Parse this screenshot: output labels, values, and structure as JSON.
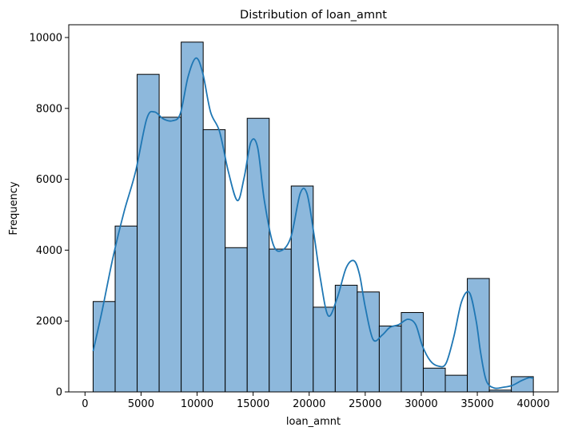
{
  "chart_data": {
    "type": "bar",
    "title": "Distribution of loan_amnt",
    "xlabel": "loan_amnt",
    "ylabel": "Frequency",
    "xlim": [
      -1450,
      42200
    ],
    "ylim": [
      0,
      10360
    ],
    "xticks": [
      0,
      5000,
      10000,
      15000,
      20000,
      25000,
      30000,
      35000,
      40000
    ],
    "yticks": [
      0,
      2000,
      4000,
      6000,
      8000,
      10000
    ],
    "grid": false,
    "bar_color": "#8db8dc",
    "bar_edge": "#000000",
    "kde_color": "#1f77b4",
    "bins": [
      {
        "x0": 725,
        "x1": 2689,
        "count": 2550
      },
      {
        "x0": 2689,
        "x1": 4653,
        "count": 4680
      },
      {
        "x0": 4653,
        "x1": 6616,
        "count": 8960
      },
      {
        "x0": 6616,
        "x1": 8580,
        "count": 7750
      },
      {
        "x0": 8580,
        "x1": 10544,
        "count": 9870
      },
      {
        "x0": 10544,
        "x1": 12507,
        "count": 7400
      },
      {
        "x0": 12507,
        "x1": 14471,
        "count": 4070
      },
      {
        "x0": 14471,
        "x1": 16435,
        "count": 7720
      },
      {
        "x0": 16435,
        "x1": 18398,
        "count": 4030
      },
      {
        "x0": 18398,
        "x1": 20362,
        "count": 5810
      },
      {
        "x0": 20362,
        "x1": 22326,
        "count": 2390
      },
      {
        "x0": 22326,
        "x1": 24289,
        "count": 3010
      },
      {
        "x0": 24289,
        "x1": 26253,
        "count": 2820
      },
      {
        "x0": 26253,
        "x1": 28217,
        "count": 1860
      },
      {
        "x0": 28217,
        "x1": 30180,
        "count": 2240
      },
      {
        "x0": 30180,
        "x1": 32144,
        "count": 670
      },
      {
        "x0": 32144,
        "x1": 34108,
        "count": 470
      },
      {
        "x0": 34108,
        "x1": 36071,
        "count": 3200
      },
      {
        "x0": 36071,
        "x1": 38035,
        "count": 50
      },
      {
        "x0": 38035,
        "x1": 39999,
        "count": 430
      }
    ],
    "kde": {
      "x": [
        725,
        1500,
        2500,
        3500,
        4500,
        5500,
        6200,
        7000,
        7800,
        8500,
        9200,
        9900,
        10500,
        11200,
        12000,
        12800,
        13600,
        14200,
        14800,
        15400,
        16000,
        16800,
        17600,
        18400,
        19200,
        19800,
        20400,
        21000,
        21700,
        22500,
        23300,
        24000,
        24500,
        25000,
        25700,
        26500,
        27200,
        28000,
        28800,
        29500,
        30100,
        30800,
        31500,
        32200,
        32900,
        33600,
        34300,
        34900,
        35300,
        35800,
        36500,
        37300,
        38100,
        38900,
        39600,
        39999
      ],
      "y": [
        1150,
        2250,
        3800,
        5100,
        6200,
        7700,
        7900,
        7700,
        7650,
        7850,
        8900,
        9420,
        9000,
        7900,
        7350,
        6200,
        5400,
        6050,
        7050,
        6900,
        5400,
        4150,
        4000,
        4400,
        5600,
        5600,
        4500,
        3200,
        2150,
        2650,
        3500,
        3700,
        3300,
        2400,
        1480,
        1600,
        1820,
        1900,
        2050,
        1900,
        1300,
        880,
        730,
        800,
        1550,
        2550,
        2800,
        2000,
        1100,
        320,
        110,
        130,
        180,
        310,
        400,
        380
      ]
    }
  }
}
